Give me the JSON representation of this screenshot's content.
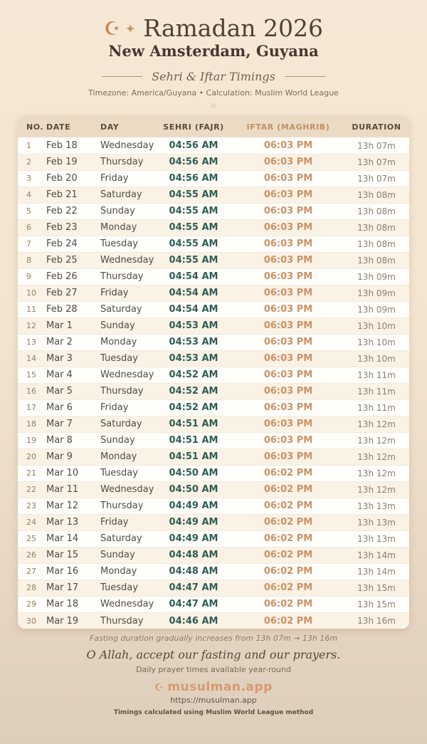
{
  "page": {
    "title": "Ramadan 2026",
    "location": "New Amsterdam, Guyana",
    "subtitle": "Sehri & Iftar Timings",
    "meta": "Timezone: America/Guyana • Calculation: Muslim World League",
    "crescent_icon": "☪",
    "sparkle_icon": "✦",
    "diamond_icon": "◇"
  },
  "colors": {
    "sehri_time": "#2e5e55",
    "iftar_time": "#cd9164",
    "header_bg": "#ecdbc4",
    "brand": "#d59a6e",
    "page_top": "#f6e8d6",
    "page_bottom": "#ddcebb"
  },
  "table": {
    "columns": [
      "NO.",
      "DATE",
      "DAY",
      "SEHRI (FAJR)",
      "IFTAR (MAGHRIB)",
      "DURATION"
    ],
    "rows": [
      {
        "no": "1",
        "date": "Feb 18",
        "day": "Wednesday",
        "sehri": "04:56 AM",
        "iftar": "06:03 PM",
        "duration": "13h 07m"
      },
      {
        "no": "2",
        "date": "Feb 19",
        "day": "Thursday",
        "sehri": "04:56 AM",
        "iftar": "06:03 PM",
        "duration": "13h 07m"
      },
      {
        "no": "3",
        "date": "Feb 20",
        "day": "Friday",
        "sehri": "04:56 AM",
        "iftar": "06:03 PM",
        "duration": "13h 07m"
      },
      {
        "no": "4",
        "date": "Feb 21",
        "day": "Saturday",
        "sehri": "04:55 AM",
        "iftar": "06:03 PM",
        "duration": "13h 08m"
      },
      {
        "no": "5",
        "date": "Feb 22",
        "day": "Sunday",
        "sehri": "04:55 AM",
        "iftar": "06:03 PM",
        "duration": "13h 08m"
      },
      {
        "no": "6",
        "date": "Feb 23",
        "day": "Monday",
        "sehri": "04:55 AM",
        "iftar": "06:03 PM",
        "duration": "13h 08m"
      },
      {
        "no": "7",
        "date": "Feb 24",
        "day": "Tuesday",
        "sehri": "04:55 AM",
        "iftar": "06:03 PM",
        "duration": "13h 08m"
      },
      {
        "no": "8",
        "date": "Feb 25",
        "day": "Wednesday",
        "sehri": "04:55 AM",
        "iftar": "06:03 PM",
        "duration": "13h 08m"
      },
      {
        "no": "9",
        "date": "Feb 26",
        "day": "Thursday",
        "sehri": "04:54 AM",
        "iftar": "06:03 PM",
        "duration": "13h 09m"
      },
      {
        "no": "10",
        "date": "Feb 27",
        "day": "Friday",
        "sehri": "04:54 AM",
        "iftar": "06:03 PM",
        "duration": "13h 09m"
      },
      {
        "no": "11",
        "date": "Feb 28",
        "day": "Saturday",
        "sehri": "04:54 AM",
        "iftar": "06:03 PM",
        "duration": "13h 09m"
      },
      {
        "no": "12",
        "date": "Mar 1",
        "day": "Sunday",
        "sehri": "04:53 AM",
        "iftar": "06:03 PM",
        "duration": "13h 10m"
      },
      {
        "no": "13",
        "date": "Mar 2",
        "day": "Monday",
        "sehri": "04:53 AM",
        "iftar": "06:03 PM",
        "duration": "13h 10m"
      },
      {
        "no": "14",
        "date": "Mar 3",
        "day": "Tuesday",
        "sehri": "04:53 AM",
        "iftar": "06:03 PM",
        "duration": "13h 10m"
      },
      {
        "no": "15",
        "date": "Mar 4",
        "day": "Wednesday",
        "sehri": "04:52 AM",
        "iftar": "06:03 PM",
        "duration": "13h 11m"
      },
      {
        "no": "16",
        "date": "Mar 5",
        "day": "Thursday",
        "sehri": "04:52 AM",
        "iftar": "06:03 PM",
        "duration": "13h 11m"
      },
      {
        "no": "17",
        "date": "Mar 6",
        "day": "Friday",
        "sehri": "04:52 AM",
        "iftar": "06:03 PM",
        "duration": "13h 11m"
      },
      {
        "no": "18",
        "date": "Mar 7",
        "day": "Saturday",
        "sehri": "04:51 AM",
        "iftar": "06:03 PM",
        "duration": "13h 12m"
      },
      {
        "no": "19",
        "date": "Mar 8",
        "day": "Sunday",
        "sehri": "04:51 AM",
        "iftar": "06:03 PM",
        "duration": "13h 12m"
      },
      {
        "no": "20",
        "date": "Mar 9",
        "day": "Monday",
        "sehri": "04:51 AM",
        "iftar": "06:03 PM",
        "duration": "13h 12m"
      },
      {
        "no": "21",
        "date": "Mar 10",
        "day": "Tuesday",
        "sehri": "04:50 AM",
        "iftar": "06:02 PM",
        "duration": "13h 12m"
      },
      {
        "no": "22",
        "date": "Mar 11",
        "day": "Wednesday",
        "sehri": "04:50 AM",
        "iftar": "06:02 PM",
        "duration": "13h 12m"
      },
      {
        "no": "23",
        "date": "Mar 12",
        "day": "Thursday",
        "sehri": "04:49 AM",
        "iftar": "06:02 PM",
        "duration": "13h 13m"
      },
      {
        "no": "24",
        "date": "Mar 13",
        "day": "Friday",
        "sehri": "04:49 AM",
        "iftar": "06:02 PM",
        "duration": "13h 13m"
      },
      {
        "no": "25",
        "date": "Mar 14",
        "day": "Saturday",
        "sehri": "04:49 AM",
        "iftar": "06:02 PM",
        "duration": "13h 13m"
      },
      {
        "no": "26",
        "date": "Mar 15",
        "day": "Sunday",
        "sehri": "04:48 AM",
        "iftar": "06:02 PM",
        "duration": "13h 14m"
      },
      {
        "no": "27",
        "date": "Mar 16",
        "day": "Monday",
        "sehri": "04:48 AM",
        "iftar": "06:02 PM",
        "duration": "13h 14m"
      },
      {
        "no": "28",
        "date": "Mar 17",
        "day": "Tuesday",
        "sehri": "04:47 AM",
        "iftar": "06:02 PM",
        "duration": "13h 15m"
      },
      {
        "no": "29",
        "date": "Mar 18",
        "day": "Wednesday",
        "sehri": "04:47 AM",
        "iftar": "06:02 PM",
        "duration": "13h 15m"
      },
      {
        "no": "30",
        "date": "Mar 19",
        "day": "Thursday",
        "sehri": "04:46 AM",
        "iftar": "06:02 PM",
        "duration": "13h 16m"
      }
    ]
  },
  "footer": {
    "note": "Fasting duration gradually increases from 13h 07m → 13h 16m",
    "dua": "O Allah, accept our fasting and our prayers.",
    "availability": "Daily prayer times available year-round",
    "brand_icon": "☪",
    "brand": "musulman.app",
    "url": "https://musulman.app",
    "method": "Timings calculated using Muslim World League method"
  }
}
